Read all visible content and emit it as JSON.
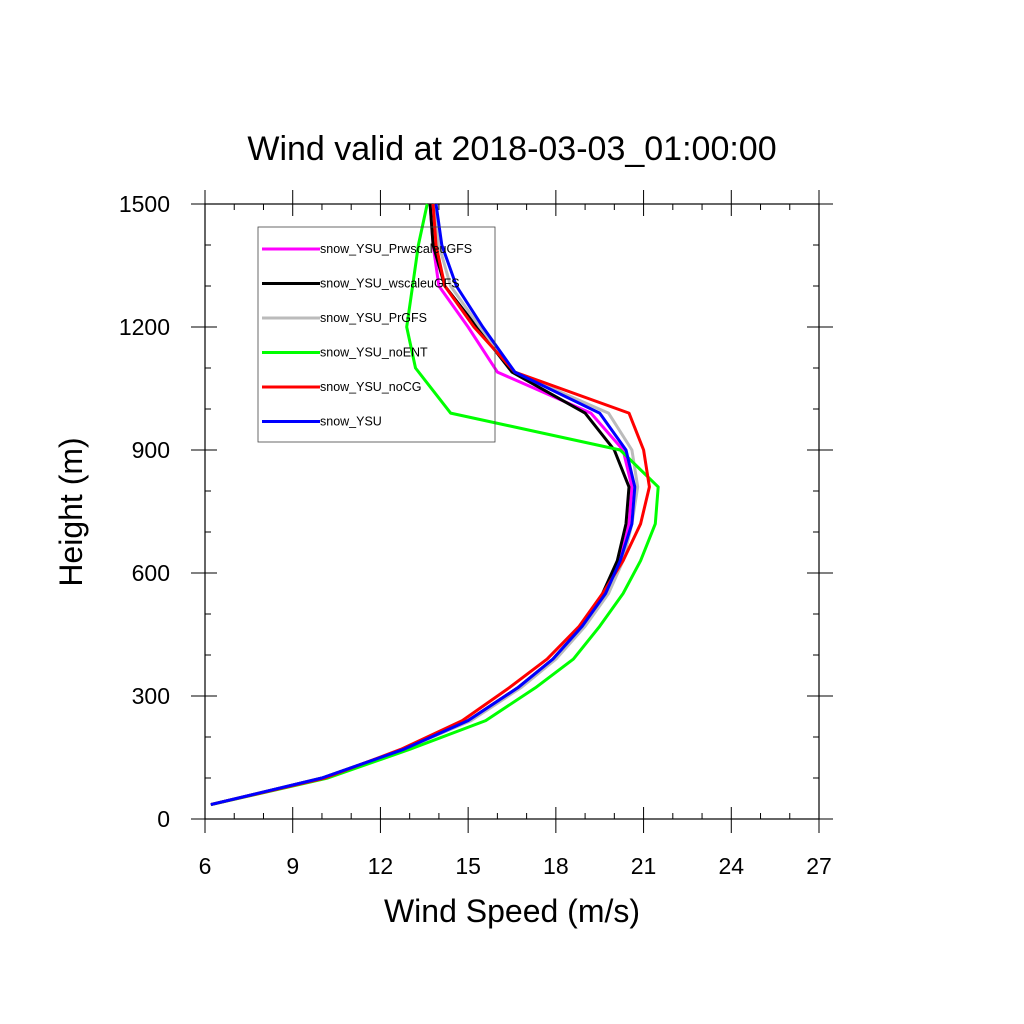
{
  "chart_data": {
    "type": "line",
    "title": "Wind valid at 2018-03-03_01:00:00",
    "xlabel": "Wind Speed (m/s)",
    "ylabel": "Height (m)",
    "xlim": [
      6,
      27
    ],
    "ylim": [
      0,
      1500
    ],
    "xticks": [
      6,
      9,
      12,
      15,
      18,
      21,
      24,
      27
    ],
    "yticks": [
      0,
      300,
      600,
      900,
      1200,
      1500
    ],
    "x_minor_step": 1,
    "y_minor_step": 100,
    "grid": false,
    "legend_position": "top-left",
    "series": [
      {
        "name": "snow_YSU_PrwscaleuGFS",
        "color": "#ff00ff",
        "points": [
          [
            6.2,
            35
          ],
          [
            10.0,
            100
          ],
          [
            12.8,
            170
          ],
          [
            15.0,
            240
          ],
          [
            16.7,
            320
          ],
          [
            17.9,
            390
          ],
          [
            18.9,
            470
          ],
          [
            19.7,
            550
          ],
          [
            20.2,
            630
          ],
          [
            20.5,
            720
          ],
          [
            20.6,
            810
          ],
          [
            20.3,
            900
          ],
          [
            19.2,
            990
          ],
          [
            16.0,
            1090
          ],
          [
            15.0,
            1200
          ],
          [
            14.0,
            1300
          ],
          [
            13.8,
            1400
          ],
          [
            13.7,
            1500
          ]
        ]
      },
      {
        "name": "snow_YSU_wscaleuGFS",
        "color": "#000000",
        "points": [
          [
            6.2,
            35
          ],
          [
            10.0,
            100
          ],
          [
            12.8,
            170
          ],
          [
            15.0,
            240
          ],
          [
            16.7,
            320
          ],
          [
            17.9,
            390
          ],
          [
            18.9,
            470
          ],
          [
            19.6,
            550
          ],
          [
            20.1,
            630
          ],
          [
            20.4,
            720
          ],
          [
            20.5,
            810
          ],
          [
            20.0,
            900
          ],
          [
            19.0,
            990
          ],
          [
            16.5,
            1090
          ],
          [
            15.3,
            1200
          ],
          [
            14.2,
            1300
          ],
          [
            13.8,
            1400
          ],
          [
            13.7,
            1500
          ]
        ]
      },
      {
        "name": "snow_YSU_PrGFS",
        "color": "#bbbbbb",
        "points": [
          [
            6.2,
            35
          ],
          [
            10.0,
            100
          ],
          [
            12.8,
            170
          ],
          [
            15.1,
            240
          ],
          [
            16.8,
            320
          ],
          [
            18.0,
            390
          ],
          [
            19.0,
            470
          ],
          [
            19.8,
            550
          ],
          [
            20.3,
            630
          ],
          [
            20.6,
            720
          ],
          [
            20.8,
            810
          ],
          [
            20.6,
            900
          ],
          [
            19.8,
            990
          ],
          [
            16.6,
            1090
          ],
          [
            15.4,
            1200
          ],
          [
            14.4,
            1300
          ],
          [
            14.0,
            1400
          ],
          [
            13.8,
            1500
          ]
        ]
      },
      {
        "name": "snow_YSU_noENT",
        "color": "#00ff00",
        "points": [
          [
            6.2,
            35
          ],
          [
            10.2,
            100
          ],
          [
            13.0,
            170
          ],
          [
            15.6,
            240
          ],
          [
            17.3,
            320
          ],
          [
            18.6,
            390
          ],
          [
            19.5,
            470
          ],
          [
            20.3,
            550
          ],
          [
            20.9,
            630
          ],
          [
            21.4,
            720
          ],
          [
            21.5,
            810
          ],
          [
            20.2,
            900
          ],
          [
            14.4,
            990
          ],
          [
            13.2,
            1100
          ],
          [
            12.9,
            1200
          ],
          [
            13.1,
            1300
          ],
          [
            13.3,
            1400
          ],
          [
            13.6,
            1500
          ]
        ]
      },
      {
        "name": "snow_YSU_noCG",
        "color": "#ff0000",
        "points": [
          [
            6.2,
            35
          ],
          [
            10.1,
            100
          ],
          [
            12.7,
            170
          ],
          [
            14.8,
            240
          ],
          [
            16.4,
            320
          ],
          [
            17.7,
            390
          ],
          [
            18.8,
            470
          ],
          [
            19.6,
            550
          ],
          [
            20.3,
            630
          ],
          [
            20.9,
            720
          ],
          [
            21.2,
            810
          ],
          [
            21.0,
            900
          ],
          [
            20.5,
            990
          ],
          [
            16.6,
            1090
          ],
          [
            15.2,
            1200
          ],
          [
            14.2,
            1300
          ],
          [
            13.9,
            1400
          ],
          [
            13.8,
            1500
          ]
        ]
      },
      {
        "name": "snow_YSU",
        "color": "#0000ff",
        "points": [
          [
            6.2,
            35
          ],
          [
            10.0,
            100
          ],
          [
            12.8,
            170
          ],
          [
            15.0,
            240
          ],
          [
            16.7,
            320
          ],
          [
            17.9,
            390
          ],
          [
            18.9,
            470
          ],
          [
            19.7,
            550
          ],
          [
            20.2,
            630
          ],
          [
            20.6,
            720
          ],
          [
            20.7,
            810
          ],
          [
            20.4,
            900
          ],
          [
            19.5,
            990
          ],
          [
            16.6,
            1090
          ],
          [
            15.5,
            1200
          ],
          [
            14.6,
            1300
          ],
          [
            14.1,
            1400
          ],
          [
            13.9,
            1500
          ]
        ]
      }
    ]
  }
}
